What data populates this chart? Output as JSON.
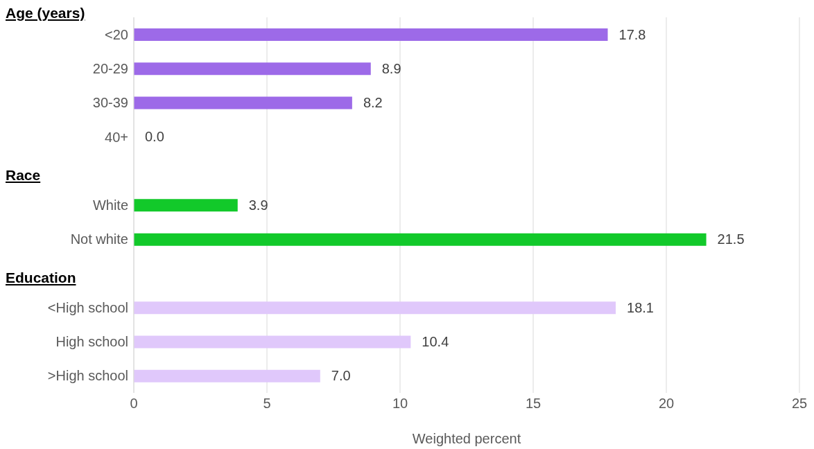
{
  "chart_data": {
    "type": "bar",
    "orientation": "horizontal",
    "xlabel": "Weighted percent",
    "categories": [
      "<20",
      "20-29",
      "30-39",
      "40+",
      null,
      "White",
      "Not white",
      null,
      "<High school",
      "High school",
      ">High school"
    ],
    "values": [
      17.8,
      8.9,
      8.2,
      0.0,
      null,
      3.9,
      21.5,
      null,
      18.1,
      10.4,
      7.0
    ],
    "value_labels": [
      "17.8",
      "8.9",
      "8.2",
      "0.0",
      null,
      "3.9",
      "21.5",
      null,
      "18.1",
      "10.4",
      "7.0"
    ],
    "colors": [
      "#9d6ae8",
      "#9d6ae8",
      "#9d6ae8",
      "#9d6ae8",
      null,
      "#12c92a",
      "#12c92a",
      null,
      "#e0c8fb",
      "#e0c8fb",
      "#e0c8fb"
    ],
    "annotations": [
      "Age (years)",
      "Race",
      "Education"
    ],
    "xlim": [
      0,
      25
    ],
    "xticks": [
      0,
      5,
      10,
      15,
      20,
      25
    ],
    "grid": "x"
  }
}
